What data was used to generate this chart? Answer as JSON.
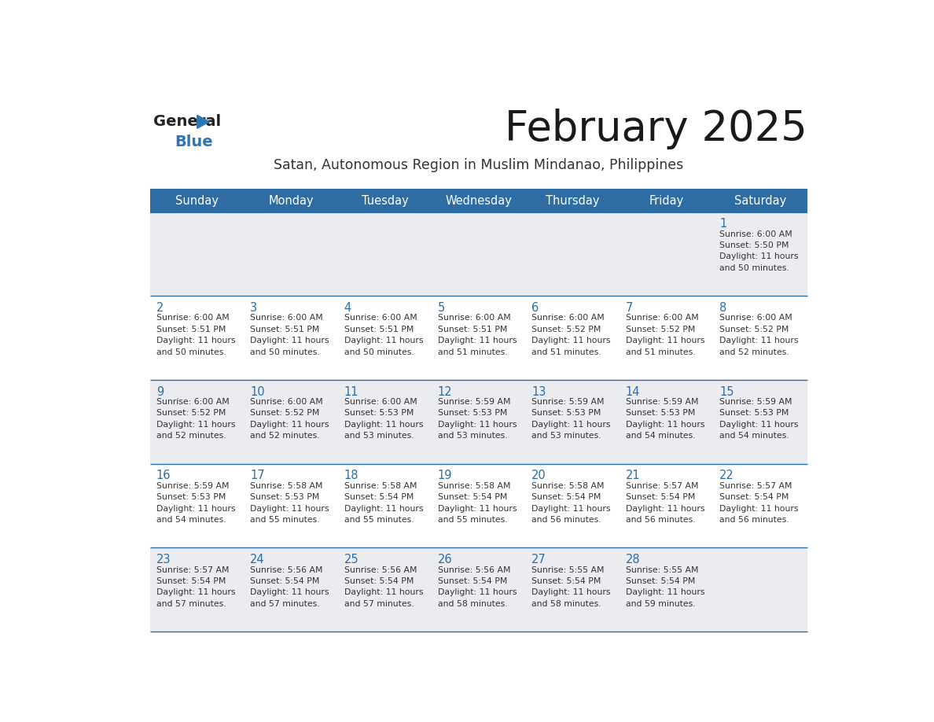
{
  "title": "February 2025",
  "subtitle": "Satan, Autonomous Region in Muslim Mindanao, Philippines",
  "days_of_week": [
    "Sunday",
    "Monday",
    "Tuesday",
    "Wednesday",
    "Thursday",
    "Friday",
    "Saturday"
  ],
  "header_bg_color": "#2E6DA4",
  "header_text_color": "#FFFFFF",
  "cell_bg_color_light": "#EAECF0",
  "cell_bg_color_white": "#FFFFFF",
  "border_color": "#2E6DA4",
  "day_number_color": "#2E6DA4",
  "cell_text_color": "#333333",
  "logo_blue_color": "#2E75B6",
  "calendar_data": [
    [
      {
        "day": null,
        "info": ""
      },
      {
        "day": null,
        "info": ""
      },
      {
        "day": null,
        "info": ""
      },
      {
        "day": null,
        "info": ""
      },
      {
        "day": null,
        "info": ""
      },
      {
        "day": null,
        "info": ""
      },
      {
        "day": 1,
        "info": "Sunrise: 6:00 AM\nSunset: 5:50 PM\nDaylight: 11 hours\nand 50 minutes."
      }
    ],
    [
      {
        "day": 2,
        "info": "Sunrise: 6:00 AM\nSunset: 5:51 PM\nDaylight: 11 hours\nand 50 minutes."
      },
      {
        "day": 3,
        "info": "Sunrise: 6:00 AM\nSunset: 5:51 PM\nDaylight: 11 hours\nand 50 minutes."
      },
      {
        "day": 4,
        "info": "Sunrise: 6:00 AM\nSunset: 5:51 PM\nDaylight: 11 hours\nand 50 minutes."
      },
      {
        "day": 5,
        "info": "Sunrise: 6:00 AM\nSunset: 5:51 PM\nDaylight: 11 hours\nand 51 minutes."
      },
      {
        "day": 6,
        "info": "Sunrise: 6:00 AM\nSunset: 5:52 PM\nDaylight: 11 hours\nand 51 minutes."
      },
      {
        "day": 7,
        "info": "Sunrise: 6:00 AM\nSunset: 5:52 PM\nDaylight: 11 hours\nand 51 minutes."
      },
      {
        "day": 8,
        "info": "Sunrise: 6:00 AM\nSunset: 5:52 PM\nDaylight: 11 hours\nand 52 minutes."
      }
    ],
    [
      {
        "day": 9,
        "info": "Sunrise: 6:00 AM\nSunset: 5:52 PM\nDaylight: 11 hours\nand 52 minutes."
      },
      {
        "day": 10,
        "info": "Sunrise: 6:00 AM\nSunset: 5:52 PM\nDaylight: 11 hours\nand 52 minutes."
      },
      {
        "day": 11,
        "info": "Sunrise: 6:00 AM\nSunset: 5:53 PM\nDaylight: 11 hours\nand 53 minutes."
      },
      {
        "day": 12,
        "info": "Sunrise: 5:59 AM\nSunset: 5:53 PM\nDaylight: 11 hours\nand 53 minutes."
      },
      {
        "day": 13,
        "info": "Sunrise: 5:59 AM\nSunset: 5:53 PM\nDaylight: 11 hours\nand 53 minutes."
      },
      {
        "day": 14,
        "info": "Sunrise: 5:59 AM\nSunset: 5:53 PM\nDaylight: 11 hours\nand 54 minutes."
      },
      {
        "day": 15,
        "info": "Sunrise: 5:59 AM\nSunset: 5:53 PM\nDaylight: 11 hours\nand 54 minutes."
      }
    ],
    [
      {
        "day": 16,
        "info": "Sunrise: 5:59 AM\nSunset: 5:53 PM\nDaylight: 11 hours\nand 54 minutes."
      },
      {
        "day": 17,
        "info": "Sunrise: 5:58 AM\nSunset: 5:53 PM\nDaylight: 11 hours\nand 55 minutes."
      },
      {
        "day": 18,
        "info": "Sunrise: 5:58 AM\nSunset: 5:54 PM\nDaylight: 11 hours\nand 55 minutes."
      },
      {
        "day": 19,
        "info": "Sunrise: 5:58 AM\nSunset: 5:54 PM\nDaylight: 11 hours\nand 55 minutes."
      },
      {
        "day": 20,
        "info": "Sunrise: 5:58 AM\nSunset: 5:54 PM\nDaylight: 11 hours\nand 56 minutes."
      },
      {
        "day": 21,
        "info": "Sunrise: 5:57 AM\nSunset: 5:54 PM\nDaylight: 11 hours\nand 56 minutes."
      },
      {
        "day": 22,
        "info": "Sunrise: 5:57 AM\nSunset: 5:54 PM\nDaylight: 11 hours\nand 56 minutes."
      }
    ],
    [
      {
        "day": 23,
        "info": "Sunrise: 5:57 AM\nSunset: 5:54 PM\nDaylight: 11 hours\nand 57 minutes."
      },
      {
        "day": 24,
        "info": "Sunrise: 5:56 AM\nSunset: 5:54 PM\nDaylight: 11 hours\nand 57 minutes."
      },
      {
        "day": 25,
        "info": "Sunrise: 5:56 AM\nSunset: 5:54 PM\nDaylight: 11 hours\nand 57 minutes."
      },
      {
        "day": 26,
        "info": "Sunrise: 5:56 AM\nSunset: 5:54 PM\nDaylight: 11 hours\nand 58 minutes."
      },
      {
        "day": 27,
        "info": "Sunrise: 5:55 AM\nSunset: 5:54 PM\nDaylight: 11 hours\nand 58 minutes."
      },
      {
        "day": 28,
        "info": "Sunrise: 5:55 AM\nSunset: 5:54 PM\nDaylight: 11 hours\nand 59 minutes."
      },
      {
        "day": null,
        "info": ""
      }
    ]
  ]
}
